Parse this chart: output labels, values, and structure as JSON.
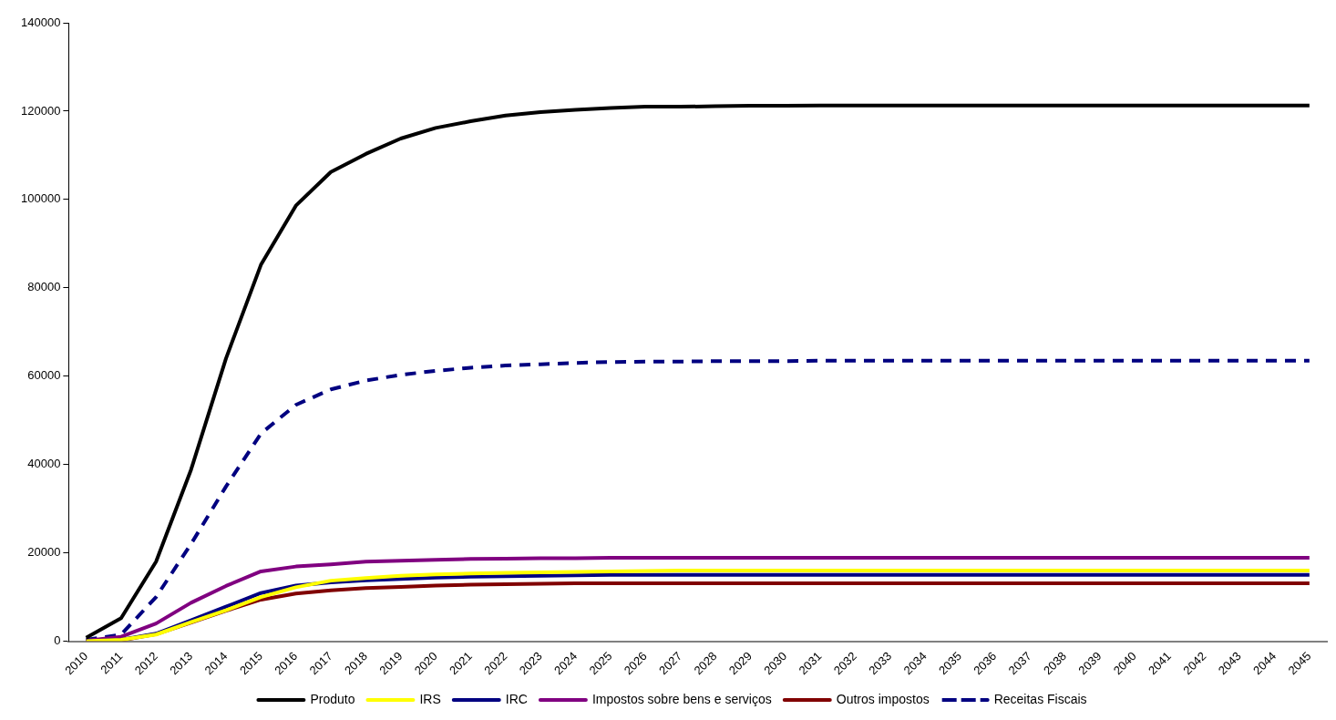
{
  "chart_data": {
    "type": "line",
    "categories": [
      "2010",
      "2011",
      "2012",
      "2013",
      "2014",
      "2015",
      "2016",
      "2017",
      "2018",
      "2019",
      "2020",
      "2021",
      "2022",
      "2023",
      "2024",
      "2025",
      "2026",
      "2027",
      "2028",
      "2029",
      "2030",
      "2031",
      "2032",
      "2033",
      "2034",
      "2035",
      "2036",
      "2037",
      "2038",
      "2039",
      "2040",
      "2041",
      "2042",
      "2043",
      "2044",
      "2045"
    ],
    "series": [
      {
        "name": "Produto",
        "color": "#000000",
        "line_style": "solid",
        "values": [
          800,
          5200,
          18000,
          38800,
          64000,
          85200,
          98600,
          106200,
          110300,
          113800,
          116200,
          117700,
          119000,
          119800,
          120300,
          120700,
          121000,
          121000,
          121100,
          121200,
          121200,
          121300,
          121300,
          121300,
          121300,
          121300,
          121300,
          121300,
          121300,
          121300,
          121300,
          121300,
          121300,
          121300,
          121300,
          121300
        ]
      },
      {
        "name": "IRS",
        "color": "#ffff00",
        "line_style": "solid",
        "values": [
          0,
          300,
          1500,
          4300,
          7000,
          10000,
          12200,
          13700,
          14300,
          14800,
          15100,
          15300,
          15500,
          15600,
          15700,
          15800,
          15900,
          16000,
          16000,
          16000,
          16000,
          16000,
          16000,
          16000,
          16000,
          16000,
          16000,
          16000,
          16000,
          16000,
          16000,
          16000,
          16000,
          16000,
          16000,
          16000
        ]
      },
      {
        "name": "IRC",
        "color": "#000080",
        "line_style": "solid",
        "values": [
          0,
          300,
          1700,
          4700,
          7800,
          10900,
          12600,
          13300,
          13800,
          14100,
          14400,
          14600,
          14700,
          14800,
          14900,
          15000,
          15000,
          15000,
          15000,
          15000,
          15000,
          15000,
          15000,
          15000,
          15000,
          15000,
          15000,
          15000,
          15000,
          15000,
          15000,
          15000,
          15000,
          15000,
          15000,
          15000
        ]
      },
      {
        "name": "Impostos sobre bens e serviços",
        "color": "#800080",
        "line_style": "solid",
        "values": [
          100,
          1000,
          4000,
          8700,
          12500,
          15800,
          16900,
          17400,
          18000,
          18200,
          18400,
          18600,
          18700,
          18800,
          18800,
          18900,
          18900,
          18900,
          18900,
          18900,
          18900,
          18900,
          18900,
          18900,
          18900,
          18900,
          18900,
          18900,
          18900,
          18900,
          18900,
          18900,
          18900,
          18900,
          18900,
          18900
        ]
      },
      {
        "name": "Outros impostos",
        "color": "#800000",
        "line_style": "solid",
        "values": [
          0,
          200,
          1600,
          4200,
          6900,
          9400,
          10800,
          11500,
          12000,
          12300,
          12600,
          12800,
          12900,
          13000,
          13100,
          13100,
          13100,
          13100,
          13100,
          13100,
          13100,
          13100,
          13100,
          13100,
          13100,
          13100,
          13100,
          13100,
          13100,
          13100,
          13100,
          13100,
          13100,
          13100,
          13100,
          13100
        ]
      },
      {
        "name": "Receitas Fiscais",
        "color": "#000080",
        "line_style": "dashed",
        "values": [
          300,
          1500,
          10000,
          22000,
          35000,
          47000,
          53500,
          57000,
          59000,
          60300,
          61200,
          61900,
          62400,
          62700,
          63000,
          63200,
          63300,
          63300,
          63400,
          63400,
          63400,
          63500,
          63500,
          63500,
          63500,
          63500,
          63500,
          63500,
          63500,
          63500,
          63500,
          63500,
          63500,
          63500,
          63500,
          63500
        ]
      }
    ],
    "ylim": [
      0,
      140000
    ],
    "yticks": [
      0,
      20000,
      40000,
      60000,
      80000,
      100000,
      120000,
      140000
    ],
    "grid": false,
    "legend": "bottom",
    "marker": "none"
  }
}
